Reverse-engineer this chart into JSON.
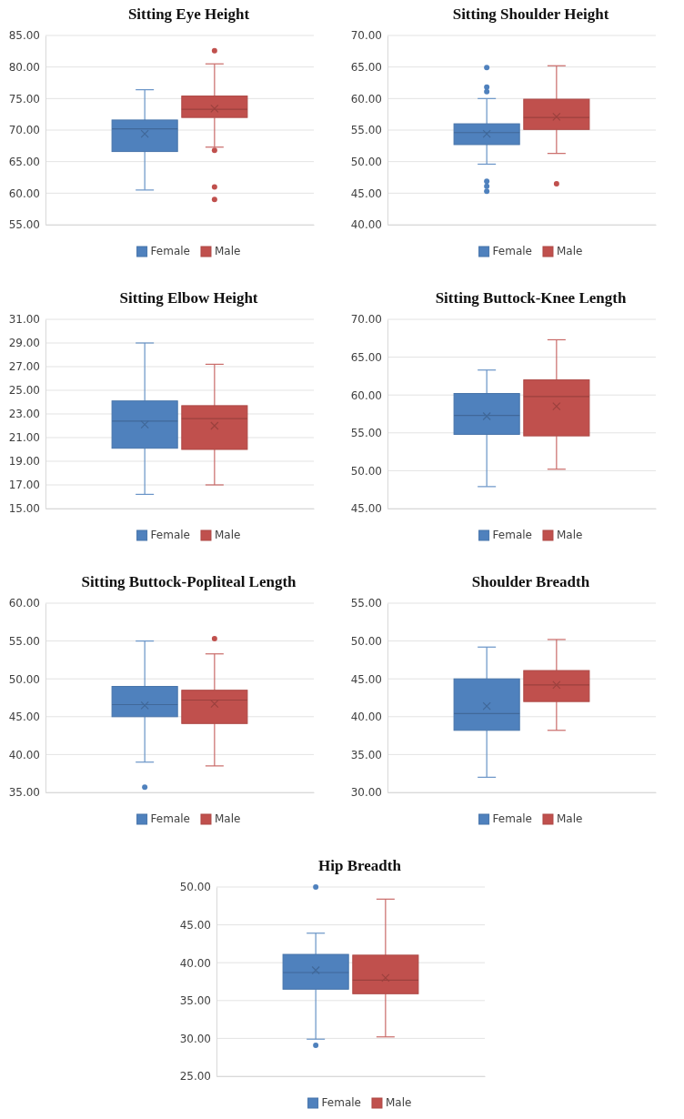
{
  "chart_data": [
    {
      "type": "box",
      "title": "Sitting Eye Height",
      "categories": [
        null
      ],
      "ylim": [
        55,
        85
      ],
      "yticks": [
        {
          "value": 55,
          "label": "55.00"
        },
        {
          "value": 60,
          "label": "60.00"
        },
        {
          "value": 65,
          "label": "65.00"
        },
        {
          "value": 70,
          "label": "70.00"
        },
        {
          "value": 75,
          "label": "75.00"
        },
        {
          "value": 80,
          "label": "80.00"
        },
        {
          "value": 85,
          "label": "85.00"
        }
      ],
      "grid": "y",
      "legend": "bottom",
      "series": [
        {
          "name": "Female",
          "color": "#4f81bd",
          "boxes": [
            {
              "low": 60.5,
              "q1": 66.6,
              "median": 70.2,
              "q3": 71.6,
              "high": 76.4,
              "mean": 69.4
            }
          ]
        },
        {
          "name": "Male",
          "color": "#c0504d",
          "boxes": [
            {
              "low": 67.3,
              "q1": 72.0,
              "median": 73.3,
              "q3": 75.4,
              "high": 80.5,
              "mean": 73.4,
              "outliers": [
                82.6,
                66.8,
                61.0,
                59.0
              ]
            }
          ]
        }
      ]
    },
    {
      "type": "box",
      "title": "Sitting Shoulder Height",
      "categories": [
        null
      ],
      "ylim": [
        40,
        70
      ],
      "yticks": [
        {
          "value": 40,
          "label": "40.00"
        },
        {
          "value": 45,
          "label": "45.00"
        },
        {
          "value": 50,
          "label": "50.00"
        },
        {
          "value": 55,
          "label": "55.00"
        },
        {
          "value": 60,
          "label": "60.00"
        },
        {
          "value": 65,
          "label": "65.00"
        },
        {
          "value": 70,
          "label": "70.00"
        }
      ],
      "grid": "y",
      "legend": "bottom",
      "series": [
        {
          "name": "Female",
          "color": "#4f81bd",
          "boxes": [
            {
              "low": 49.6,
              "q1": 52.7,
              "median": 54.6,
              "q3": 56.0,
              "high": 60.0,
              "mean": 54.4,
              "outliers": [
                64.9,
                61.8,
                61.1,
                46.9,
                46.1,
                45.3
              ]
            }
          ]
        },
        {
          "name": "Male",
          "color": "#c0504d",
          "boxes": [
            {
              "low": 51.3,
              "q1": 55.1,
              "median": 57.0,
              "q3": 59.9,
              "high": 65.2,
              "mean": 57.1,
              "outliers": [
                46.5
              ]
            }
          ]
        }
      ]
    },
    {
      "type": "box",
      "title": "Sitting Elbow Height",
      "categories": [
        null
      ],
      "ylim": [
        15,
        31
      ],
      "yticks": [
        {
          "value": 15,
          "label": "15.00"
        },
        {
          "value": 17,
          "label": "17.00"
        },
        {
          "value": 19,
          "label": "19.00"
        },
        {
          "value": 21,
          "label": "21.00"
        },
        {
          "value": 23,
          "label": "23.00"
        },
        {
          "value": 25,
          "label": "25.00"
        },
        {
          "value": 27,
          "label": "27.00"
        },
        {
          "value": 29,
          "label": "29.00"
        },
        {
          "value": 31,
          "label": "31.00"
        }
      ],
      "grid": "y",
      "legend": "bottom",
      "series": [
        {
          "name": "Female",
          "color": "#4f81bd",
          "boxes": [
            {
              "low": 16.2,
              "q1": 20.1,
              "median": 22.4,
              "q3": 24.1,
              "high": 29.0,
              "mean": 22.1
            }
          ]
        },
        {
          "name": "Male",
          "color": "#c0504d",
          "boxes": [
            {
              "low": 17.0,
              "q1": 20.0,
              "median": 22.6,
              "q3": 23.7,
              "high": 27.2,
              "mean": 22.0
            }
          ]
        }
      ]
    },
    {
      "type": "box",
      "title": "Sitting Buttock-Knee Length",
      "categories": [
        null
      ],
      "ylim": [
        45,
        70
      ],
      "yticks": [
        {
          "value": 45,
          "label": "45.00"
        },
        {
          "value": 50,
          "label": "50.00"
        },
        {
          "value": 55,
          "label": "55.00"
        },
        {
          "value": 60,
          "label": "60.00"
        },
        {
          "value": 65,
          "label": "65.00"
        },
        {
          "value": 70,
          "label": "70.00"
        }
      ],
      "grid": "y",
      "legend": "bottom",
      "series": [
        {
          "name": "Female",
          "color": "#4f81bd",
          "boxes": [
            {
              "low": 47.9,
              "q1": 54.8,
              "median": 57.3,
              "q3": 60.2,
              "high": 63.3,
              "mean": 57.2
            }
          ]
        },
        {
          "name": "Male",
          "color": "#c0504d",
          "boxes": [
            {
              "low": 50.2,
              "q1": 54.6,
              "median": 59.8,
              "q3": 62.0,
              "high": 67.3,
              "mean": 58.5
            }
          ]
        }
      ]
    },
    {
      "type": "box",
      "title": "Sitting Buttock-Popliteal Length",
      "categories": [
        null
      ],
      "ylim": [
        35,
        60
      ],
      "yticks": [
        {
          "value": 35,
          "label": "35.00"
        },
        {
          "value": 40,
          "label": "40.00"
        },
        {
          "value": 45,
          "label": "45.00"
        },
        {
          "value": 50,
          "label": "50.00"
        },
        {
          "value": 55,
          "label": "55.00"
        },
        {
          "value": 60,
          "label": "60.00"
        }
      ],
      "grid": "y",
      "legend": "bottom",
      "series": [
        {
          "name": "Female",
          "color": "#4f81bd",
          "boxes": [
            {
              "low": 39.0,
              "q1": 45.0,
              "median": 46.6,
              "q3": 49.0,
              "high": 55.0,
              "mean": 46.5,
              "outliers": [
                35.7
              ]
            }
          ]
        },
        {
          "name": "Male",
          "color": "#c0504d",
          "boxes": [
            {
              "low": 38.5,
              "q1": 44.1,
              "median": 47.2,
              "q3": 48.5,
              "high": 53.3,
              "mean": 46.7,
              "outliers": [
                55.3
              ]
            }
          ]
        }
      ]
    },
    {
      "type": "box",
      "title": "Shoulder Breadth",
      "categories": [
        null
      ],
      "ylim": [
        30,
        55
      ],
      "yticks": [
        {
          "value": 30,
          "label": "30.00"
        },
        {
          "value": 35,
          "label": "35.00"
        },
        {
          "value": 40,
          "label": "40.00"
        },
        {
          "value": 45,
          "label": "45.00"
        },
        {
          "value": 50,
          "label": "50.00"
        },
        {
          "value": 55,
          "label": "55.00"
        }
      ],
      "grid": "y",
      "legend": "bottom",
      "series": [
        {
          "name": "Female",
          "color": "#4f81bd",
          "boxes": [
            {
              "low": 32.0,
              "q1": 38.2,
              "median": 40.4,
              "q3": 45.0,
              "high": 49.2,
              "mean": 41.4
            }
          ]
        },
        {
          "name": "Male",
          "color": "#c0504d",
          "boxes": [
            {
              "low": 38.2,
              "q1": 42.0,
              "median": 44.2,
              "q3": 46.1,
              "high": 50.2,
              "mean": 44.2
            }
          ]
        }
      ]
    },
    {
      "type": "box",
      "title": "Hip Breadth",
      "categories": [
        null
      ],
      "ylim": [
        25,
        50
      ],
      "yticks": [
        {
          "value": 25,
          "label": "25.00"
        },
        {
          "value": 30,
          "label": "30.00"
        },
        {
          "value": 35,
          "label": "35.00"
        },
        {
          "value": 40,
          "label": "40.00"
        },
        {
          "value": 45,
          "label": "45.00"
        },
        {
          "value": 50,
          "label": "50.00"
        }
      ],
      "grid": "y",
      "legend": "bottom",
      "series": [
        {
          "name": "Female",
          "color": "#4f81bd",
          "boxes": [
            {
              "low": 29.9,
              "q1": 36.5,
              "median": 38.7,
              "q3": 41.1,
              "high": 43.9,
              "mean": 39.0,
              "outliers": [
                50.0,
                29.1
              ]
            }
          ]
        },
        {
          "name": "Male",
          "color": "#c0504d",
          "boxes": [
            {
              "low": 30.2,
              "q1": 35.9,
              "median": 37.7,
              "q3": 41.0,
              "high": 48.4,
              "mean": 38.0
            }
          ]
        }
      ]
    }
  ]
}
